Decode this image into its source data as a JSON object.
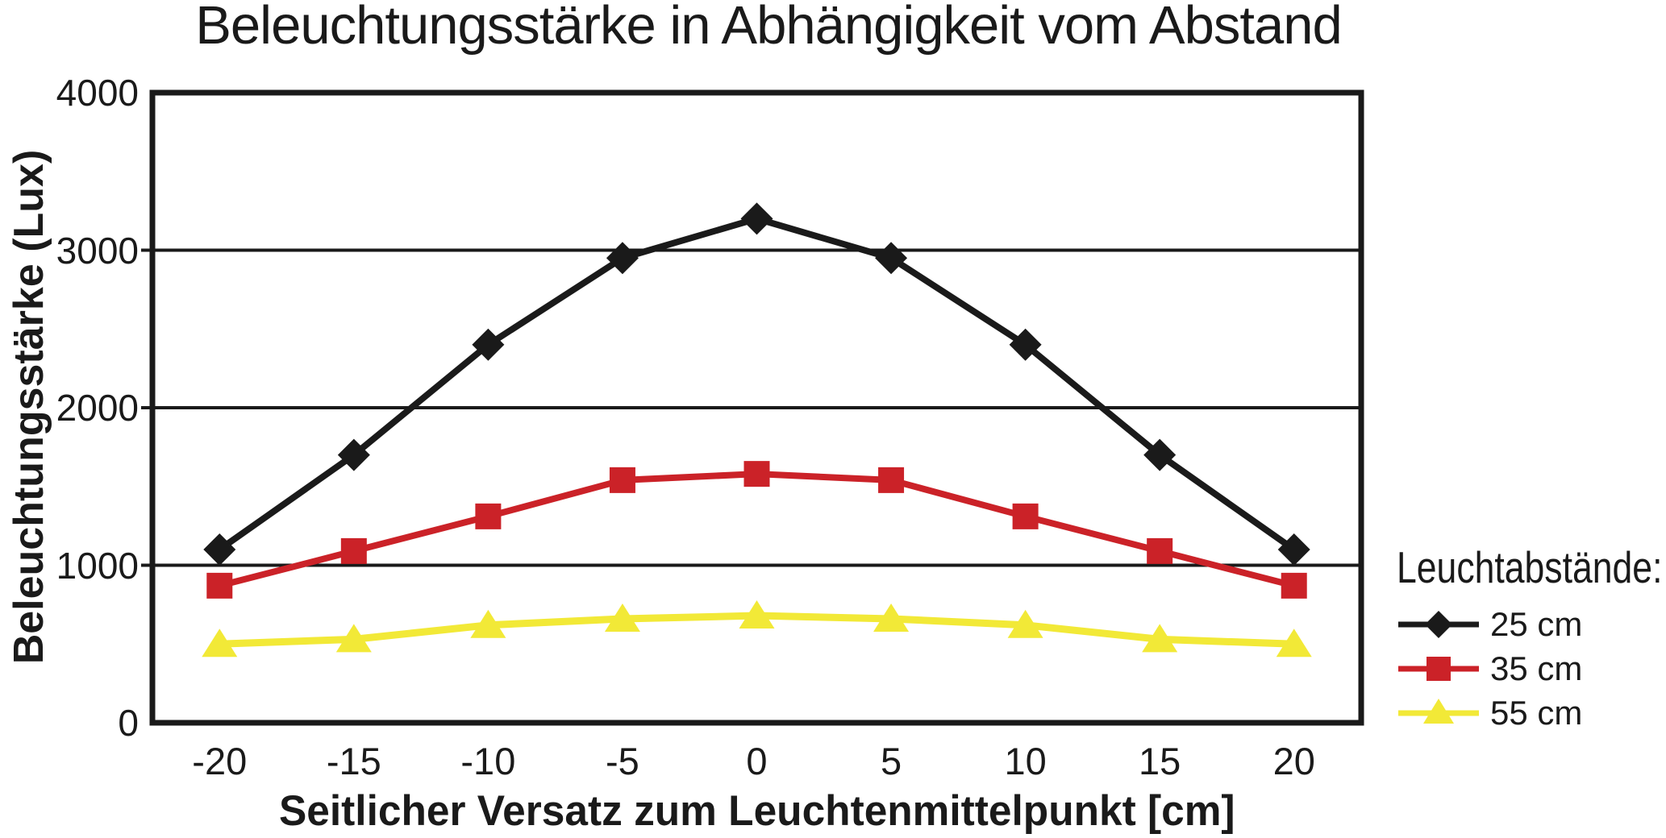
{
  "chart_data": {
    "type": "line",
    "title": "Beleuchtungsstärke in Abhängigkeit vom Abstand",
    "xlabel": "Seitlicher Versatz zum Leuchtenmittelpunkt [cm]",
    "ylabel": "Beleuchtungsstärke (Lux)",
    "x_tick_labels": [
      "-20",
      "-15",
      "-10",
      "-5",
      "0",
      "5",
      "10",
      "15",
      "20"
    ],
    "y_tick_labels": [
      "0",
      "1000",
      "2000",
      "3000",
      "4000"
    ],
    "y_tick_values": [
      0,
      1000,
      2000,
      3000,
      4000
    ],
    "y_gridline_values": [
      1000,
      2000,
      3000
    ],
    "ylim": [
      0,
      4000
    ],
    "grid": "horizontal-only",
    "axis_color": "#1a1a1a",
    "legend": {
      "title": "Leuchtabstände:",
      "position": "right-bottom"
    },
    "categories": [
      -20,
      -15,
      -10,
      -5,
      0,
      5,
      10,
      15,
      20
    ],
    "series": [
      {
        "name": "25 cm",
        "marker": "diamond",
        "color": "#1a1a1a",
        "line_width": 8,
        "values": [
          1100,
          1700,
          2400,
          2950,
          3200,
          2950,
          2400,
          1700,
          1100
        ]
      },
      {
        "name": "35 cm",
        "marker": "square",
        "color": "#cb2228",
        "line_width": 8,
        "values": [
          870,
          1090,
          1310,
          1540,
          1580,
          1540,
          1310,
          1090,
          870
        ]
      },
      {
        "name": "55 cm",
        "marker": "triangle",
        "color": "#f2e937",
        "line_width": 9,
        "values": [
          500,
          530,
          620,
          660,
          680,
          660,
          620,
          530,
          500
        ]
      }
    ]
  }
}
